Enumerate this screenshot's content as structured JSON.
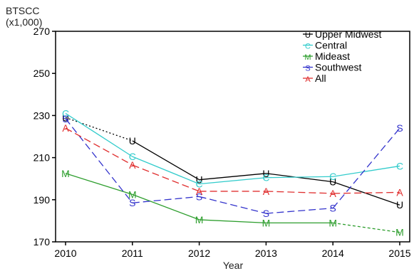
{
  "chart_data": {
    "type": "line",
    "title": "",
    "ylabel": "BTSCC",
    "ylabel_unit": "(x1,000)",
    "xlabel": "Year",
    "x": [
      2010,
      2011,
      2012,
      2013,
      2014,
      2015
    ],
    "ylim": [
      170,
      270
    ],
    "y_ticks": [
      170,
      190,
      210,
      230,
      250,
      270
    ],
    "grid": false,
    "legend_position": "top-right",
    "series": [
      {
        "name": "Upper Midwest",
        "marker": "U",
        "color": "#000000",
        "line_style": "dotted-then-solid",
        "values": [
          229,
          218,
          199.5,
          202.5,
          198.5,
          187.5
        ]
      },
      {
        "name": "Central",
        "marker": "C",
        "color": "#33cccc",
        "line_style": "solid",
        "values": [
          231,
          210.5,
          197.5,
          200.5,
          201,
          206
        ]
      },
      {
        "name": "Mideast",
        "marker": "M",
        "color": "#2e9e2e",
        "line_style": "solid-then-dashed",
        "values": [
          202.5,
          192.5,
          180.5,
          179,
          179,
          174.5
        ]
      },
      {
        "name": "Southwest",
        "marker": "S",
        "color": "#3333cc",
        "line_style": "dashed",
        "values": [
          228.5,
          188.5,
          191.5,
          183.5,
          186,
          224
        ]
      },
      {
        "name": "All",
        "marker": "A",
        "color": "#e03030",
        "line_style": "dashed",
        "values": [
          224,
          206.5,
          194,
          194,
          193,
          193.5
        ]
      }
    ]
  }
}
